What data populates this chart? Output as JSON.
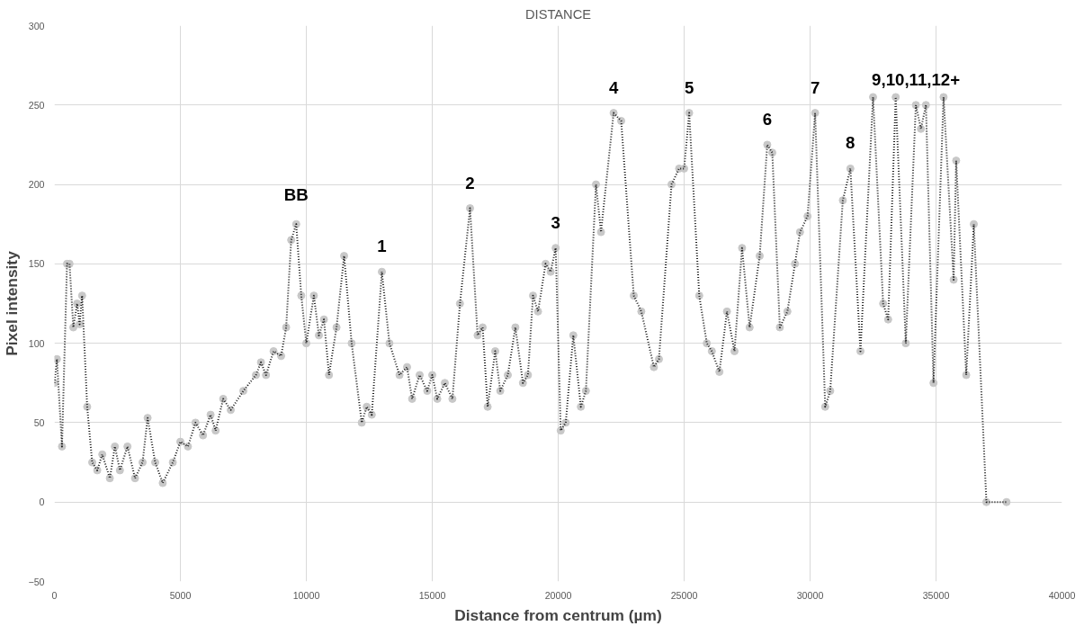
{
  "chart_data": {
    "type": "line",
    "title": "DISTANCE",
    "xlabel": "Distance from centrum (µm)",
    "ylabel": "Pixel intensity",
    "xlim": [
      0,
      40000
    ],
    "xticks": [
      0,
      5000,
      10000,
      15000,
      20000,
      25000,
      30000,
      35000,
      40000
    ],
    "ylim": [
      -50,
      300
    ],
    "yticks": [
      -50,
      0,
      50,
      100,
      150,
      200,
      250,
      300
    ],
    "grid": true,
    "marker": "circle",
    "line_style": "dotted",
    "x": [
      0,
      100,
      300,
      500,
      600,
      750,
      900,
      1000,
      1100,
      1300,
      1500,
      1700,
      1900,
      2200,
      2400,
      2600,
      2900,
      3200,
      3500,
      3700,
      4000,
      4300,
      4700,
      5000,
      5300,
      5600,
      5900,
      6200,
      6400,
      6700,
      7000,
      7500,
      8000,
      8200,
      8400,
      8700,
      9000,
      9200,
      9400,
      9600,
      9800,
      10000,
      10300,
      10500,
      10700,
      10900,
      11200,
      11500,
      11800,
      12200,
      12400,
      12600,
      13000,
      13300,
      13700,
      14000,
      14200,
      14500,
      14800,
      15000,
      15200,
      15500,
      15800,
      16100,
      16500,
      16800,
      17000,
      17200,
      17500,
      17700,
      18000,
      18300,
      18600,
      18800,
      19000,
      19200,
      19500,
      19700,
      19900,
      20100,
      20300,
      20600,
      20900,
      21100,
      21500,
      21700,
      22200,
      22500,
      23000,
      23300,
      23800,
      24000,
      24500,
      24800,
      25000,
      25200,
      25600,
      25900,
      26100,
      26400,
      26700,
      27000,
      27300,
      27600,
      28000,
      28300,
      28500,
      28800,
      29100,
      29400,
      29600,
      29900,
      30200,
      30600,
      30800,
      31300,
      31600,
      32000,
      32500,
      32900,
      33100,
      33400,
      33800,
      34200,
      34400,
      34600,
      34900,
      35300,
      35700,
      35800,
      36200,
      36500,
      37000,
      37800
    ],
    "series": [
      {
        "color": "#c8c8c8",
        "values": [
          75,
          90,
          35,
          150,
          150,
          110,
          125,
          112,
          130,
          60,
          25,
          20,
          30,
          15,
          35,
          20,
          35,
          15,
          25,
          53,
          25,
          12,
          25,
          38,
          35,
          50,
          42,
          55,
          45,
          65,
          58,
          70,
          80,
          88,
          80,
          95,
          92,
          110,
          165,
          175,
          130,
          100,
          130,
          105,
          115,
          80,
          110,
          155,
          100,
          50,
          60,
          55,
          145,
          100,
          80,
          85,
          65,
          80,
          70,
          80,
          65,
          75,
          65,
          125,
          185,
          105,
          110,
          60,
          95,
          70,
          80,
          110,
          75,
          80,
          130,
          120,
          150,
          145,
          160,
          45,
          50,
          105,
          60,
          70,
          200,
          170,
          245,
          240,
          130,
          120,
          85,
          90,
          200,
          210,
          210,
          245,
          130,
          100,
          95,
          82,
          120,
          95,
          160,
          110,
          155,
          225,
          220,
          110,
          120,
          150,
          170,
          180,
          245,
          60,
          70,
          190,
          210,
          95,
          255,
          125,
          115,
          255,
          100,
          250,
          235,
          250,
          75,
          255,
          140,
          215,
          80,
          175,
          0,
          0
        ]
      }
    ],
    "annotations": [
      {
        "text": "BB",
        "x": 9600,
        "y": 175
      },
      {
        "text": "1",
        "x": 13000,
        "y": 145
      },
      {
        "text": "2",
        "x": 16500,
        "y": 185
      },
      {
        "text": "3",
        "x": 19900,
        "y": 160
      },
      {
        "text": "4",
        "x": 22200,
        "y": 245
      },
      {
        "text": "5",
        "x": 25200,
        "y": 245
      },
      {
        "text": "6",
        "x": 28300,
        "y": 225
      },
      {
        "text": "7",
        "x": 30200,
        "y": 245
      },
      {
        "text": "8",
        "x": 31600,
        "y": 210
      },
      {
        "text": "9,10,11,12+",
        "x": 34200,
        "y": 250
      }
    ]
  }
}
